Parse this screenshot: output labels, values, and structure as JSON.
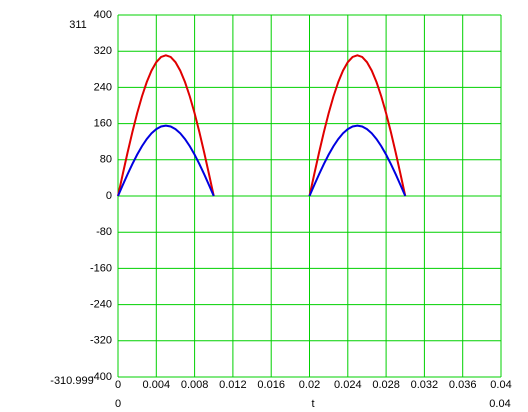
{
  "chart_data": {
    "type": "line",
    "x": [
      0,
      0.0005,
      0.001,
      0.0015,
      0.002,
      0.0025,
      0.003,
      0.0035,
      0.004,
      0.0045,
      0.005,
      0.0055,
      0.006,
      0.0065,
      0.007,
      0.0075,
      0.008,
      0.0085,
      0.009,
      0.0095,
      0.01,
      0.015,
      0.02,
      0.0205,
      0.021,
      0.0215,
      0.022,
      0.0225,
      0.023,
      0.0235,
      0.024,
      0.0245,
      0.025,
      0.0255,
      0.026,
      0.0265,
      0.027,
      0.0275,
      0.028,
      0.0285,
      0.029,
      0.0295,
      0.03
    ],
    "series": [
      {
        "color": "#e00000",
        "values": [
          0,
          48.6,
          96.1,
          141.2,
          182.8,
          219.9,
          251.6,
          277.1,
          295.8,
          307.2,
          311,
          307.2,
          295.8,
          277.1,
          251.6,
          219.9,
          182.8,
          141.2,
          96.1,
          48.6,
          0,
          null,
          0,
          48.6,
          96.1,
          141.2,
          182.8,
          219.9,
          251.6,
          277.1,
          295.8,
          307.2,
          311,
          307.2,
          295.8,
          277.1,
          251.6,
          219.9,
          182.8,
          141.2,
          96.1,
          48.6,
          0
        ]
      },
      {
        "color": "#0000e0",
        "values": [
          0,
          24.3,
          48.1,
          70.6,
          91.4,
          110.0,
          125.8,
          138.6,
          147.9,
          153.6,
          155.5,
          153.6,
          147.9,
          138.6,
          125.8,
          110.0,
          91.4,
          70.6,
          48.1,
          24.3,
          0,
          null,
          0,
          24.3,
          48.1,
          70.6,
          91.4,
          110.0,
          125.8,
          138.6,
          147.9,
          153.6,
          155.5,
          153.6,
          147.9,
          138.6,
          125.8,
          110.0,
          91.4,
          70.6,
          48.1,
          24.3,
          0
        ]
      }
    ],
    "xlim": [
      0,
      0.04
    ],
    "xticks": [
      0,
      0.004,
      0.008,
      0.012,
      0.016,
      0.02,
      0.024,
      0.028,
      0.032,
      0.036,
      0.04
    ],
    "ylim": [
      -400,
      400
    ],
    "yticks": [
      -400,
      -320,
      -240,
      -160,
      -80,
      0,
      80,
      160,
      240,
      320,
      400
    ],
    "grid": true,
    "grid_color": "#00d000",
    "xlabel": "t",
    "x_range_start": "0",
    "x_range_end": "0.04",
    "y_marker_top": "311",
    "y_marker_bottom": "-310.999"
  }
}
